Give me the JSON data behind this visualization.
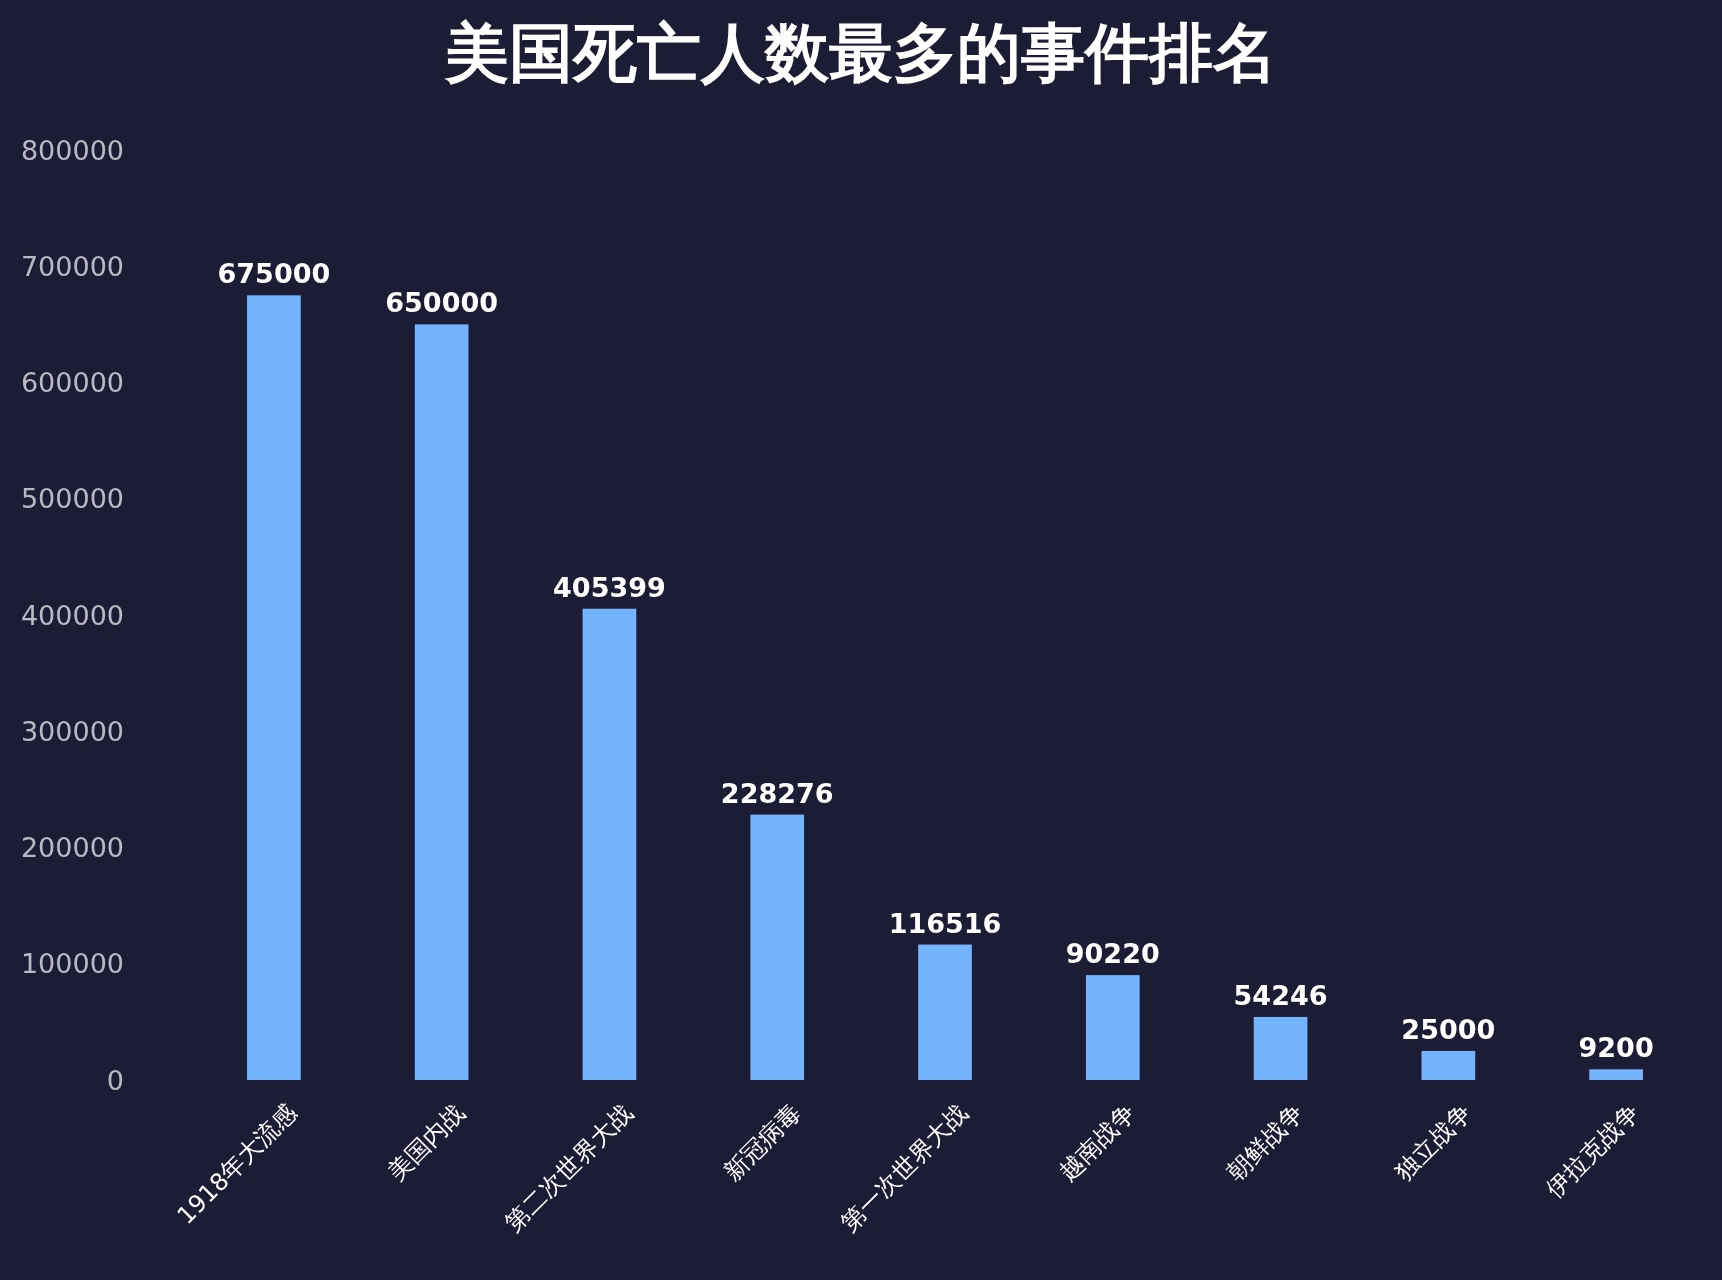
{
  "chart_data": {
    "type": "bar",
    "title": "美国死亡人数最多的事件排名",
    "categories": [
      "1918年大流感",
      "美国内战",
      "第二次世界大战",
      "新冠病毒",
      "第一次世界大战",
      "越南战争",
      "朝鲜战争",
      "独立战争",
      "伊拉克战争"
    ],
    "series": [
      {
        "color": "#74b4fc",
        "values": [
          675000,
          650000,
          405399,
          228276,
          116516,
          90220,
          54246,
          25000,
          9200
        ]
      }
    ],
    "ylim": [
      0,
      800000
    ],
    "yticks": [
      0,
      100000,
      200000,
      300000,
      400000,
      500000,
      600000,
      700000,
      800000
    ],
    "data_labels": true,
    "grid": false
  }
}
